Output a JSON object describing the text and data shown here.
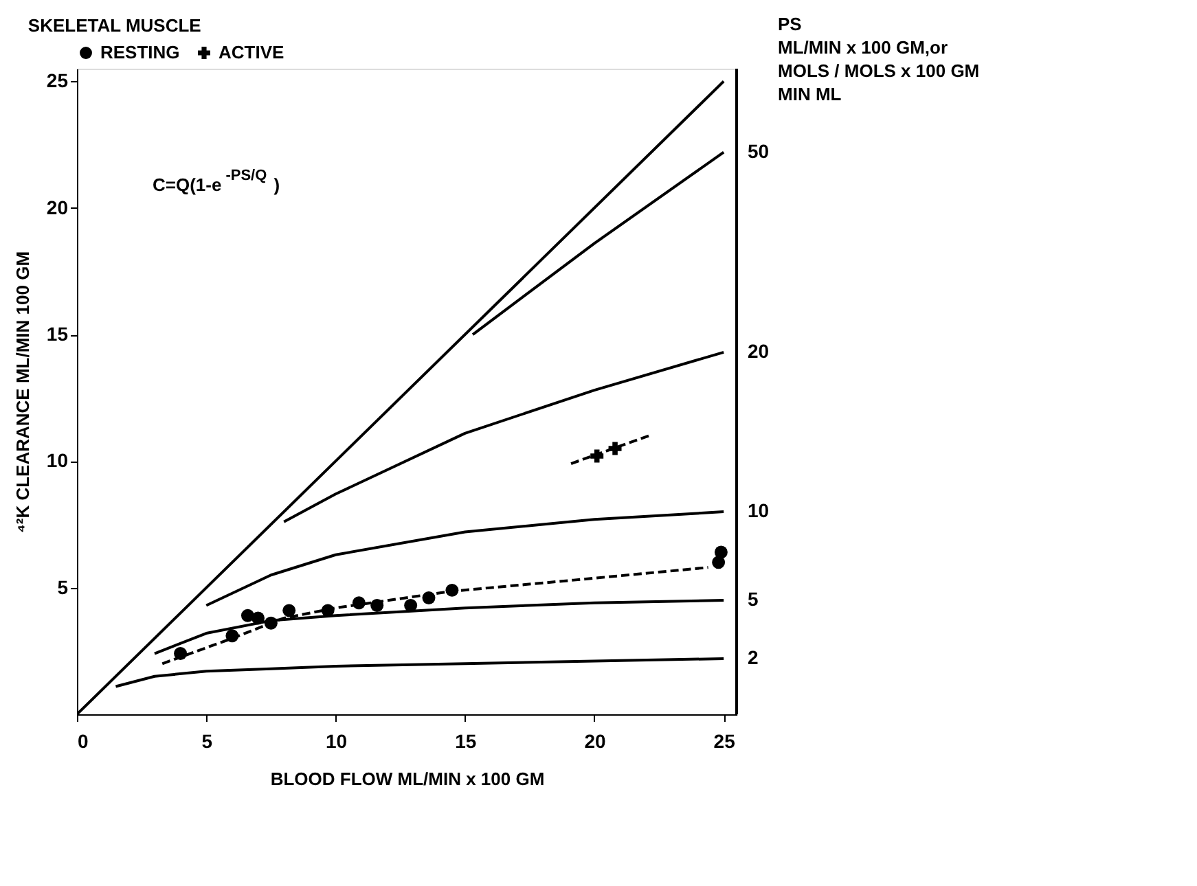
{
  "chart_data": {
    "type": "line",
    "title": "SKELETAL MUSCLE",
    "xlabel": "BLOOD FLOW   ML/MIN x 100 GM",
    "ylabel": "⁴²K CLEARANCE ML/MIN 100 GM",
    "annotations": [
      "C=Q(1-e$^{-PS/Q}$)",
      "PS\nML/MIN x 100 GM,or\nMOLS / MOLS x 100 GM\nMIN        ML"
    ],
    "xlim": [
      0,
      25.5
    ],
    "xticks": [
      0,
      5,
      10,
      15,
      20,
      25
    ],
    "ylim": [
      0,
      25.5
    ],
    "yticks": [
      5,
      10,
      15,
      20,
      25
    ],
    "grid": false,
    "legend": "top",
    "series": [
      {
        "color": "#000000",
        "line_style": "solid",
        "x": [
          0,
          25
        ],
        "values": [
          0,
          25
        ]
      },
      {
        "name": "50",
        "color": "#000000",
        "line_style": "solid",
        "x": [
          15.3,
          20,
          25
        ],
        "values": [
          15.0,
          18.6,
          22.2
        ]
      },
      {
        "name": "20",
        "color": "#000000",
        "line_style": "solid",
        "x": [
          8,
          10,
          15,
          20,
          25
        ],
        "values": [
          7.6,
          8.7,
          11.1,
          12.8,
          14.3
        ]
      },
      {
        "name": "10",
        "color": "#000000",
        "line_style": "solid",
        "x": [
          5,
          7.5,
          10,
          15,
          20,
          25
        ],
        "values": [
          4.3,
          5.5,
          6.3,
          7.2,
          7.7,
          8.0
        ]
      },
      {
        "name": "5",
        "color": "#000000",
        "line_style": "solid",
        "x": [
          3,
          5,
          7.5,
          10,
          15,
          20,
          25
        ],
        "values": [
          2.4,
          3.2,
          3.7,
          3.9,
          4.2,
          4.4,
          4.5
        ]
      },
      {
        "name": "2",
        "color": "#000000",
        "line_style": "solid",
        "x": [
          1.5,
          3,
          5,
          7.5,
          10,
          15,
          20,
          25
        ],
        "values": [
          1.1,
          1.5,
          1.7,
          1.8,
          1.9,
          2.0,
          2.1,
          2.2
        ]
      },
      {
        "color": "#000000",
        "line_style": "dashed",
        "x": [
          3.3,
          6,
          8,
          10,
          14.4,
          19.2,
          24.4
        ],
        "values": [
          2.0,
          3.0,
          3.8,
          4.2,
          4.85,
          5.3,
          5.8
        ]
      },
      {
        "color": "#000000",
        "line_style": "dashed",
        "x": [
          19.1,
          22.1
        ],
        "values": [
          9.9,
          11.0
        ]
      },
      {
        "type": "scatter",
        "name": "RESTING",
        "color": "#000000",
        "marker": "circle",
        "x": [
          4.0,
          6.0,
          6.6,
          7.0,
          7.5,
          8.2,
          9.7,
          10.9,
          11.6,
          12.9,
          13.6,
          14.5,
          24.8,
          24.9
        ],
        "values": [
          2.4,
          3.1,
          3.9,
          3.8,
          3.6,
          4.1,
          4.1,
          4.4,
          4.3,
          4.3,
          4.6,
          4.9,
          6.0,
          6.4
        ]
      },
      {
        "type": "scatter",
        "name": "ACTIVE",
        "color": "#000000",
        "marker": "cross",
        "x": [
          20.1,
          20.8
        ],
        "values": [
          10.2,
          10.5
        ]
      }
    ]
  }
}
